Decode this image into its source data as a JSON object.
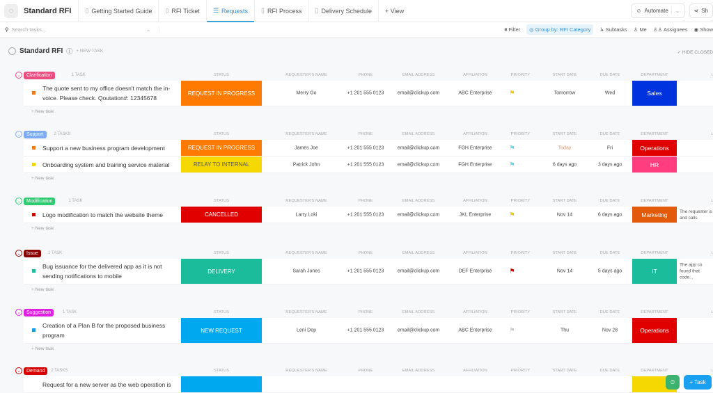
{
  "header": {
    "title": "Standard RFI",
    "tabs": [
      "Getting Started Guide",
      "RFI Ticket",
      "Requests",
      "RFI Process",
      "Delivery Schedule"
    ],
    "active_tab": "Requests",
    "add_view": "+ View",
    "automate": "Automate",
    "share": "Sh"
  },
  "toolbar": {
    "search_placeholder": "Search tasks...",
    "filter": "Filter",
    "group_by": "Group by: RFI Category",
    "subtasks": "Subtasks",
    "me": "Me",
    "assignees": "Assignees",
    "show": "Show"
  },
  "list": {
    "title": "Standard RFI",
    "new_task": "+ NEW TASK",
    "hide_closed": "✓ HIDE CLOSED"
  },
  "columns": [
    "STATUS",
    "REQUESTER'S NAME",
    "PHONE",
    "EMAIL ADDRESS",
    "AFFILIATION",
    "PRIORITY",
    "START DATE",
    "DUE DATE",
    "DEPARTMENT",
    "LA"
  ],
  "new_task_row": "+ New task",
  "groups": [
    {
      "name": "Clarification",
      "count": "1 TASK",
      "color": "#ec4d80",
      "tasks": [
        {
          "name": "The quote sent to my office doesn't match the in-voice. Please check. Qoutation#: 12345678",
          "sq": "#f07a1a",
          "status": "REQUEST IN PROGRESS",
          "status_color": "#ff7a00",
          "requester": "Merry Go",
          "phone": "+1 201 555 0123",
          "email": "email@clickup.com",
          "affiliation": "ABC Enterprise",
          "priority_color": "#f5c518",
          "start": "Tomorrow",
          "due": "Wed",
          "dept": "Sales",
          "dept_color": "#0033dd",
          "last": ""
        }
      ]
    },
    {
      "name": "Support",
      "count": "2 TASKS",
      "color": "#7eaaf2",
      "tasks": [
        {
          "name": "Support a new business program development",
          "sq": "#f07a1a",
          "status": "REQUEST IN PROGRESS",
          "status_color": "#ff7a00",
          "requester": "James Joe",
          "phone": "+1 201 555 0123",
          "email": "email@clickup.com",
          "affiliation": "FGH Enterprise",
          "priority_color": "#6fd3f0",
          "start": "Today",
          "start_color": "#e8906a",
          "due": "Fri",
          "dept": "Operations",
          "dept_color": "#e00000",
          "last": ""
        },
        {
          "name": "Onboarding system and training service material",
          "sq": "#f5d800",
          "status": "RELAY TO INTERNAL",
          "status_color": "#f5d800",
          "status_text": "#555",
          "requester": "Patrick John",
          "phone": "+1 201 555 0123",
          "email": "email@clickup.com",
          "affiliation": "FGH Enterprise",
          "priority_color": "#6fd3f0",
          "start": "6 days ago",
          "due": "3 days ago",
          "dept": "HR",
          "dept_color": "#ff3d7f",
          "last": ""
        }
      ]
    },
    {
      "name": "Modification",
      "count": "1 TASK",
      "color": "#2ecc71",
      "tasks": [
        {
          "name": "Logo modification to match the website theme",
          "sq": "#d00000",
          "status": "CANCELLED",
          "status_color": "#e00000",
          "requester": "Larry Loki",
          "phone": "+1 201 555 0123",
          "email": "email@clickup.com",
          "affiliation": "JKL Enterprise",
          "priority_color": "#f5c518",
          "start": "Nov 14",
          "due": "6 days ago",
          "dept": "Marketing",
          "dept_color": "#e25a0a",
          "last": "The requester is and calls"
        }
      ]
    },
    {
      "name": "Issue",
      "count": "1 TASK",
      "color": "#8b0000",
      "tasks": [
        {
          "name": "Bug issuance for the delivered app as it is not sending notifications to mobile",
          "sq": "#1abc9c",
          "status": "DELIVERY",
          "status_color": "#1abc9c",
          "requester": "Sarah Jones",
          "phone": "+1 201 555 0123",
          "email": "email@clickup.com",
          "affiliation": "DEF Enterprise",
          "priority_color": "#e00000",
          "start": "Nov 14",
          "due": "5 days ago",
          "dept": "IT",
          "dept_color": "#1abc9c",
          "last": "The app co found that code..."
        }
      ]
    },
    {
      "name": "Suggestion",
      "count": "1 TASK",
      "color": "#e020e0",
      "tasks": [
        {
          "name": "Creation of a Plan B for the proposed business program",
          "sq": "#1a9ce0",
          "status": "NEW REQUEST",
          "status_color": "#00a8f0",
          "requester": "Leni Dep",
          "phone": "+1 201 555 0123",
          "email": "email@clickup.com",
          "affiliation": "ABC Enterprise",
          "priority_color": "#cccccc",
          "start": "Thu",
          "due": "Nov 28",
          "dept": "Operations",
          "dept_color": "#e00000",
          "last": ""
        }
      ]
    },
    {
      "name": "Demand",
      "count": "2 TASKS",
      "color": "#d60000",
      "tasks": [
        {
          "name": "Request for a new server as the web operation is",
          "sq": "",
          "status": "",
          "status_color": "#00a8f0",
          "requester": "",
          "phone": "",
          "email": "",
          "affiliation": "",
          "priority_color": "",
          "start": "",
          "due": "",
          "dept": "",
          "dept_color": "#f5d800",
          "last": ""
        }
      ]
    }
  ],
  "fab": {
    "timer": "⏱",
    "task": "+ Task"
  }
}
